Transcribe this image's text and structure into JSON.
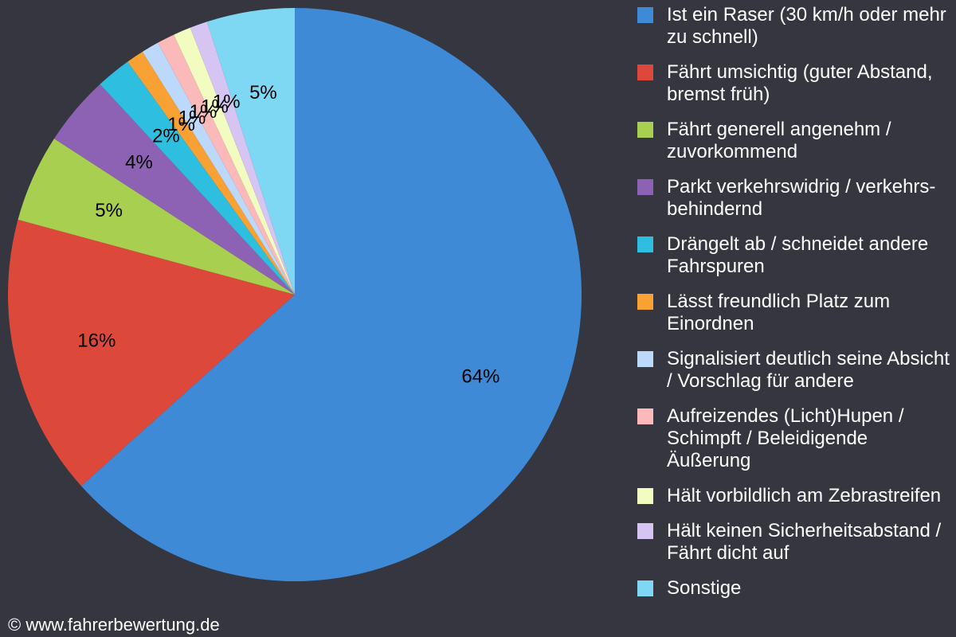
{
  "chart_data": {
    "type": "pie",
    "categories": [
      "Ist ein Raser (30 km/h oder mehr zu schnell)",
      "Fährt umsichtig (guter Abstand, bremst früh)",
      "Fährt generell angenehm / zuvorkommend",
      "Parkt verkehrswidrig / verkehrs-behindernd",
      "Drängelt ab / schneidet andere Fahrspuren",
      "Lässt freundlich Platz zum Einordnen",
      "Signalisiert deutlich seine Absicht / Vorschlag für andere",
      "Aufreizendes (Licht)Hupen / Schimpft / Beleidigende Äußerung",
      "Hält vorbildlich am Zebrastreifen",
      "Hält keinen Sicherheitsabstand / Fährt dicht auf",
      "Sonstige"
    ],
    "values": [
      64,
      16,
      5,
      4,
      2,
      1,
      1,
      1,
      1,
      1,
      5
    ],
    "value_labels": [
      "64%",
      "16%",
      "5%",
      "4%",
      "2%",
      "1%",
      "1%",
      "1%",
      "1%",
      "1%",
      "5%"
    ],
    "colors": [
      "#3e8ad6",
      "#dc4839",
      "#a8cf4f",
      "#8d62b4",
      "#2ebfe0",
      "#f9a132",
      "#bcd9fb",
      "#fbb9b9",
      "#f3fcc0",
      "#d6c4f3",
      "#7fd8f3"
    ],
    "source": "© www.fahrerbewertung.de"
  }
}
